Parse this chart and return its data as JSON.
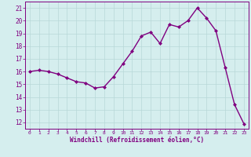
{
  "x": [
    0,
    1,
    2,
    3,
    4,
    5,
    6,
    7,
    8,
    9,
    10,
    11,
    12,
    13,
    14,
    15,
    16,
    17,
    18,
    19,
    20,
    21,
    22,
    23
  ],
  "y": [
    16.0,
    16.1,
    16.0,
    15.8,
    15.5,
    15.2,
    15.1,
    14.7,
    14.8,
    15.6,
    16.6,
    17.6,
    18.8,
    19.1,
    18.2,
    19.7,
    19.5,
    20.0,
    21.0,
    20.2,
    19.2,
    16.3,
    13.4,
    11.9
  ],
  "line_color": "#800080",
  "marker": "D",
  "marker_size": 2.0,
  "bg_color": "#d5eeee",
  "grid_color": "#b8d8d8",
  "xlabel": "Windchill (Refroidissement éolien,°C)",
  "xlabel_color": "#800080",
  "tick_color": "#800080",
  "ylim": [
    11.5,
    21.5
  ],
  "xlim": [
    -0.5,
    23.5
  ],
  "yticks": [
    12,
    13,
    14,
    15,
    16,
    17,
    18,
    19,
    20,
    21
  ],
  "xticks": [
    0,
    1,
    2,
    3,
    4,
    5,
    6,
    7,
    8,
    9,
    10,
    11,
    12,
    13,
    14,
    15,
    16,
    17,
    18,
    19,
    20,
    21,
    22,
    23
  ],
  "line_width": 1.0,
  "spine_color": "#800080"
}
